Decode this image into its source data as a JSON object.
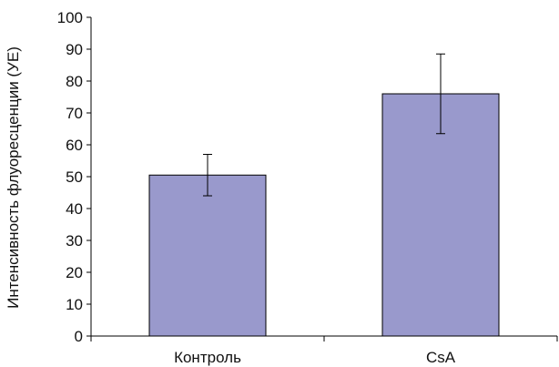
{
  "chart_data": {
    "type": "bar",
    "title": "",
    "xlabel": "",
    "ylabel": "Интенсивность флуоресценции (УЕ)",
    "categories": [
      "Контроль",
      "CsA"
    ],
    "values": [
      50.5,
      76
    ],
    "error_minus": [
      6.5,
      12.5
    ],
    "error_plus": [
      6.5,
      12.5
    ],
    "ylim": [
      0,
      100
    ],
    "yticks": [
      0,
      10,
      20,
      30,
      40,
      50,
      60,
      70,
      80,
      90,
      100
    ],
    "grid": false,
    "bar_color": "#9999cc"
  }
}
